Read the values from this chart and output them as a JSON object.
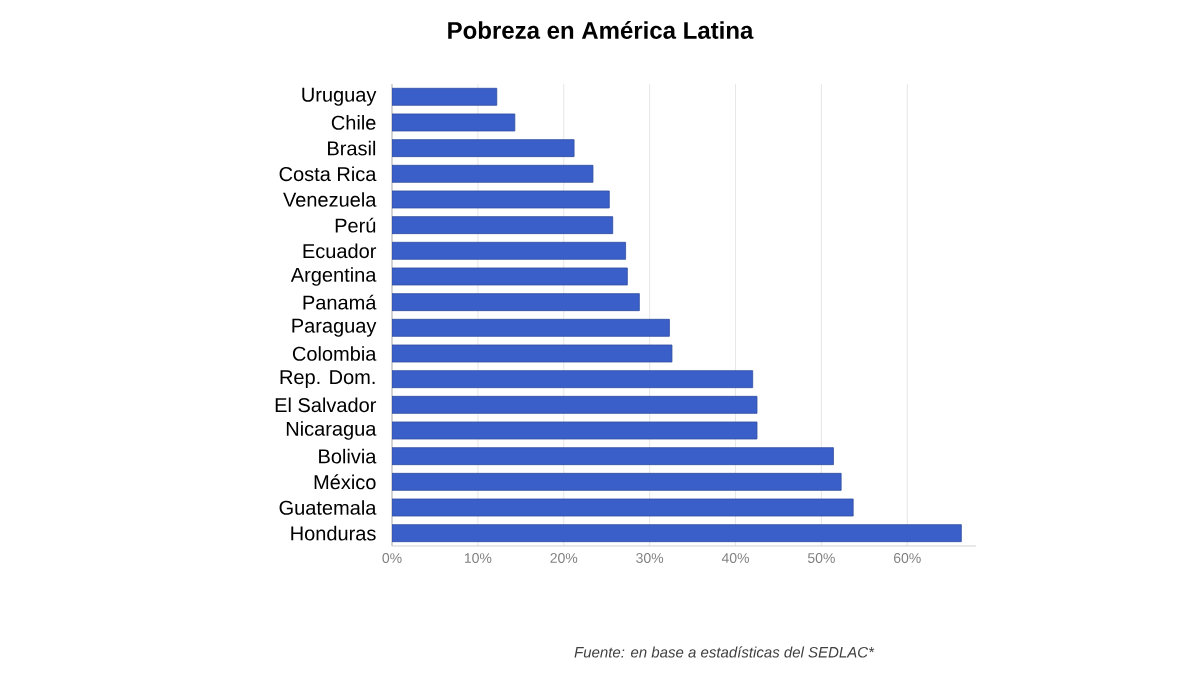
{
  "chart_data": {
    "type": "bar",
    "orientation": "horizontal",
    "title": "Pobreza en América Latina",
    "categories": [
      "Uruguay",
      "Chile",
      "Brasil",
      "Costa Rica",
      "Venezuela",
      "Perú",
      "Ecuador",
      "Argentina",
      "Panamá",
      "Paraguay",
      "Colombia",
      "Rep. Dom.",
      "El Salvador",
      "Nicaragua",
      "Bolivia",
      "México",
      "Guatemala",
      "Honduras"
    ],
    "values": [
      12.2,
      14.3,
      21.2,
      23.4,
      25.3,
      25.7,
      27.2,
      27.4,
      28.8,
      32.3,
      32.6,
      42.0,
      42.5,
      42.5,
      51.4,
      52.3,
      53.7,
      66.3
    ],
    "color": "#3b5fc8",
    "xlim": [
      0,
      68
    ],
    "xticks": [
      {
        "value": 0,
        "label": "0%"
      },
      {
        "value": 10,
        "label": "10%"
      },
      {
        "value": 20,
        "label": "20%"
      },
      {
        "value": 30,
        "label": "30%"
      },
      {
        "value": 40,
        "label": "40%"
      },
      {
        "value": 50,
        "label": "50%"
      },
      {
        "value": 60,
        "label": "60%"
      }
    ],
    "grid": "x",
    "annotations": [
      "Fuente: en base a estadísticas del SEDLAC*"
    ]
  }
}
